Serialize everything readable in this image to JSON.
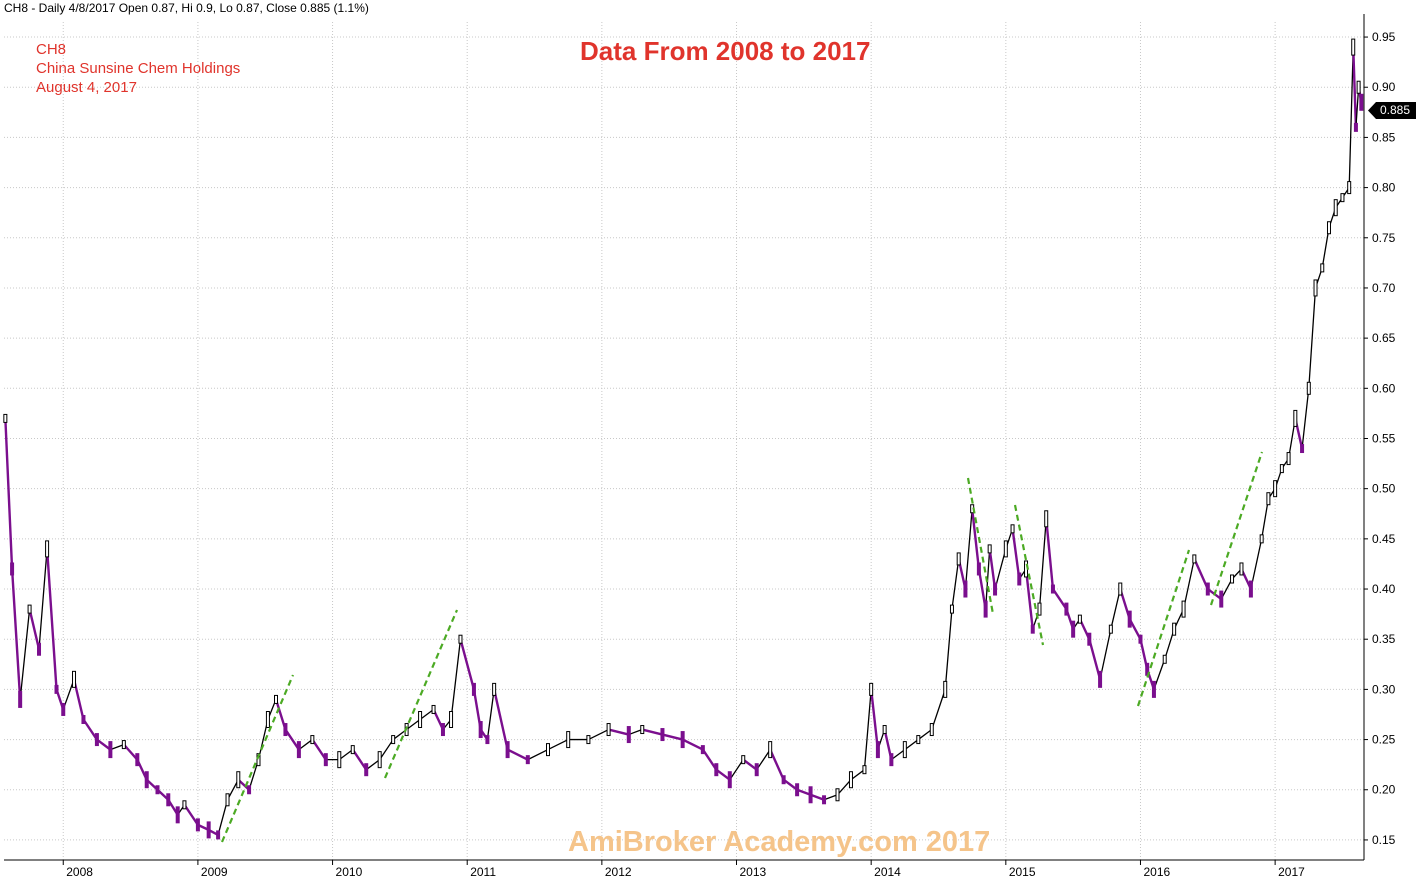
{
  "header": "CH8 - Daily 4/8/2017 Open 0.87, Hi 0.9, Lo 0.87, Close 0.885 (1.1%)",
  "labels": {
    "symbol": "CH8",
    "company": "China Sunsine Chem Holdings",
    "date": "August 4, 2017"
  },
  "title": "Data From 2008 to 2017",
  "watermark": "AmiBroker Academy.com 2017",
  "last_price": "0.885",
  "colors": {
    "down": "#7b0f8e",
    "up": "#000000",
    "trend": "#4caa24",
    "annotation": "#e0342c",
    "watermark": "#f5c48a"
  },
  "chart_data": {
    "type": "line",
    "x_ticks": [
      "2008",
      "2009",
      "2010",
      "2011",
      "2012",
      "2013",
      "2014",
      "2015",
      "2016",
      "2017"
    ],
    "y_ticks": [
      "0.15",
      "0.20",
      "0.25",
      "0.30",
      "0.35",
      "0.40",
      "0.45",
      "0.50",
      "0.55",
      "0.60",
      "0.65",
      "0.70",
      "0.75",
      "0.80",
      "0.85",
      "0.90",
      "0.95"
    ],
    "ylim": [
      0.13,
      0.965
    ],
    "xlim": [
      2007.56,
      2017.66
    ],
    "grid": true,
    "series": [
      {
        "x": [
          2007.57,
          2007.62,
          2007.68,
          2007.75,
          2007.82,
          2007.88,
          2007.95,
          2008.0,
          2008.08,
          2008.15,
          2008.25,
          2008.35,
          2008.45,
          2008.55,
          2008.62,
          2008.7,
          2008.78,
          2008.85,
          2008.9,
          2009.0,
          2009.08,
          2009.15,
          2009.22,
          2009.3,
          2009.38,
          2009.45,
          2009.52,
          2009.58,
          2009.65,
          2009.75,
          2009.85,
          2009.95,
          2010.05,
          2010.15,
          2010.25,
          2010.35,
          2010.45,
          2010.55,
          2010.65,
          2010.75,
          2010.82,
          2010.88,
          2010.95,
          2011.05,
          2011.1,
          2011.15,
          2011.2,
          2011.3,
          2011.45,
          2011.6,
          2011.75,
          2011.9,
          2012.05,
          2012.2,
          2012.3,
          2012.45,
          2012.6,
          2012.75,
          2012.85,
          2012.95,
          2013.05,
          2013.15,
          2013.25,
          2013.35,
          2013.45,
          2013.55,
          2013.65,
          2013.75,
          2013.85,
          2013.95,
          2014.0,
          2014.05,
          2014.1,
          2014.15,
          2014.25,
          2014.35,
          2014.45,
          2014.55,
          2014.6,
          2014.65,
          2014.7,
          2014.75,
          2014.8,
          2014.85,
          2014.88,
          2014.92,
          2015.0,
          2015.05,
          2015.1,
          2015.15,
          2015.2,
          2015.25,
          2015.3,
          2015.35,
          2015.45,
          2015.5,
          2015.55,
          2015.62,
          2015.7,
          2015.78,
          2015.85,
          2015.92,
          2016.0,
          2016.05,
          2016.1,
          2016.18,
          2016.25,
          2016.32,
          2016.4,
          2016.5,
          2016.6,
          2016.68,
          2016.75,
          2016.82,
          2016.9,
          2016.95,
          2017.0,
          2017.05,
          2017.1,
          2017.15,
          2017.2,
          2017.25,
          2017.3,
          2017.35,
          2017.4,
          2017.45,
          2017.5,
          2017.55,
          2017.58,
          2017.6,
          2017.62,
          2017.64
        ],
        "y": [
          0.57,
          0.42,
          0.29,
          0.38,
          0.34,
          0.44,
          0.3,
          0.28,
          0.31,
          0.27,
          0.25,
          0.24,
          0.245,
          0.23,
          0.21,
          0.2,
          0.19,
          0.175,
          0.185,
          0.165,
          0.16,
          0.155,
          0.19,
          0.21,
          0.2,
          0.23,
          0.27,
          0.29,
          0.26,
          0.24,
          0.25,
          0.23,
          0.23,
          0.24,
          0.22,
          0.23,
          0.25,
          0.26,
          0.27,
          0.28,
          0.26,
          0.27,
          0.35,
          0.3,
          0.26,
          0.25,
          0.3,
          0.24,
          0.23,
          0.24,
          0.25,
          0.25,
          0.26,
          0.255,
          0.26,
          0.255,
          0.25,
          0.24,
          0.22,
          0.21,
          0.23,
          0.22,
          0.24,
          0.21,
          0.2,
          0.195,
          0.19,
          0.195,
          0.21,
          0.22,
          0.3,
          0.24,
          0.26,
          0.23,
          0.24,
          0.25,
          0.26,
          0.3,
          0.38,
          0.43,
          0.4,
          0.48,
          0.42,
          0.38,
          0.44,
          0.4,
          0.44,
          0.46,
          0.41,
          0.42,
          0.36,
          0.38,
          0.47,
          0.4,
          0.38,
          0.36,
          0.37,
          0.35,
          0.31,
          0.36,
          0.4,
          0.37,
          0.35,
          0.32,
          0.3,
          0.33,
          0.36,
          0.38,
          0.43,
          0.4,
          0.39,
          0.41,
          0.42,
          0.4,
          0.45,
          0.49,
          0.5,
          0.52,
          0.53,
          0.57,
          0.54,
          0.6,
          0.7,
          0.72,
          0.76,
          0.78,
          0.79,
          0.8,
          0.94,
          0.86,
          0.9,
          0.885
        ]
      }
    ]
  }
}
